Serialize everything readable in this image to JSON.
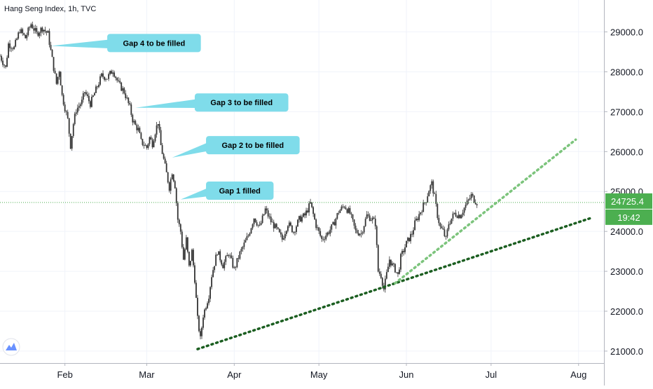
{
  "chart_data": {
    "type": "candlestick",
    "title": "Hang Seng Index, 1h, TVC",
    "colors": {
      "up": "#26a69a",
      "down": "#ef5350",
      "candle": "#333333",
      "callout": "#7fdcea",
      "trend_dark": "#1b5e20",
      "trend_light": "#7cc47c",
      "price_line": "#4caf50",
      "price_badge": "#4caf50",
      "grid": "#f0f3fa"
    },
    "y_axis": {
      "ticks": [
        "21000.0",
        "22000.0",
        "23000.0",
        "24000.0",
        "25000.0",
        "26000.0",
        "27000.0",
        "28000.0",
        "29000.0"
      ],
      "range": [
        20700,
        29800
      ]
    },
    "x_axis": {
      "ticks": [
        "Feb",
        "Mar",
        "Apr",
        "May",
        "Jun",
        "Jul",
        "Aug"
      ],
      "tick_dates": [
        "2020-02-01",
        "2020-03-01",
        "2020-04-01",
        "2020-05-01",
        "2020-06-01",
        "2020-07-01",
        "2020-08-01"
      ],
      "range": [
        "2020-01-09",
        "2020-08-10"
      ]
    },
    "current_price": {
      "label": "24725.4",
      "value": 24725.4,
      "countdown": "19:42"
    },
    "price_path": [
      [
        "2020-01-09",
        28400
      ],
      [
        "2020-01-11",
        28100
      ],
      [
        "2020-01-12",
        28700
      ],
      [
        "2020-01-14",
        28600
      ],
      [
        "2020-01-16",
        29050
      ],
      [
        "2020-01-18",
        28850
      ],
      [
        "2020-01-20",
        29200
      ],
      [
        "2020-01-22",
        28950
      ],
      [
        "2020-01-24",
        29100
      ],
      [
        "2020-01-26",
        28950
      ],
      [
        "2020-01-28",
        28100
      ],
      [
        "2020-01-29",
        27700
      ],
      [
        "2020-01-30",
        28050
      ],
      [
        "2020-01-31",
        27400
      ],
      [
        "2020-02-02",
        26800
      ],
      [
        "2020-02-03",
        26150
      ],
      [
        "2020-02-04",
        26700
      ],
      [
        "2020-02-05",
        27050
      ],
      [
        "2020-02-07",
        27250
      ],
      [
        "2020-02-08",
        27500
      ],
      [
        "2020-02-10",
        27200
      ],
      [
        "2020-02-12",
        27550
      ],
      [
        "2020-02-14",
        27900
      ],
      [
        "2020-02-16",
        27850
      ],
      [
        "2020-02-18",
        28050
      ],
      [
        "2020-02-20",
        27700
      ],
      [
        "2020-02-22",
        27500
      ],
      [
        "2020-02-24",
        27100
      ],
      [
        "2020-02-25",
        26800
      ],
      [
        "2020-02-26",
        26650
      ],
      [
        "2020-02-27",
        26550
      ],
      [
        "2020-02-28",
        26250
      ],
      [
        "2020-03-01",
        26100
      ],
      [
        "2020-03-02",
        26350
      ],
      [
        "2020-03-03",
        26200
      ],
      [
        "2020-03-04",
        26500
      ],
      [
        "2020-03-05",
        26750
      ],
      [
        "2020-03-06",
        26150
      ],
      [
        "2020-03-09",
        25100
      ],
      [
        "2020-03-10",
        25500
      ],
      [
        "2020-03-11",
        25150
      ],
      [
        "2020-03-12",
        24300
      ],
      [
        "2020-03-13",
        24000
      ],
      [
        "2020-03-14",
        23300
      ],
      [
        "2020-03-15",
        23800
      ],
      [
        "2020-03-16",
        23100
      ],
      [
        "2020-03-17",
        23500
      ],
      [
        "2020-03-18",
        22800
      ],
      [
        "2020-03-19",
        21800
      ],
      [
        "2020-03-20",
        21300
      ],
      [
        "2020-03-21",
        21900
      ],
      [
        "2020-03-23",
        22400
      ],
      [
        "2020-03-24",
        22900
      ],
      [
        "2020-03-26",
        23500
      ],
      [
        "2020-03-28",
        23150
      ],
      [
        "2020-03-30",
        23450
      ],
      [
        "2020-04-01",
        23050
      ],
      [
        "2020-04-03",
        23450
      ],
      [
        "2020-04-06",
        23900
      ],
      [
        "2020-04-08",
        24350
      ],
      [
        "2020-04-10",
        24100
      ],
      [
        "2020-04-12",
        24550
      ],
      [
        "2020-04-14",
        24250
      ],
      [
        "2020-04-16",
        24050
      ],
      [
        "2020-04-18",
        23800
      ],
      [
        "2020-04-20",
        24200
      ],
      [
        "2020-04-22",
        24000
      ],
      [
        "2020-04-24",
        24300
      ],
      [
        "2020-04-26",
        24400
      ],
      [
        "2020-04-28",
        24700
      ],
      [
        "2020-04-30",
        24150
      ],
      [
        "2020-05-02",
        23800
      ],
      [
        "2020-05-04",
        23950
      ],
      [
        "2020-05-06",
        24150
      ],
      [
        "2020-05-08",
        24500
      ],
      [
        "2020-05-10",
        24650
      ],
      [
        "2020-05-12",
        24450
      ],
      [
        "2020-05-14",
        24000
      ],
      [
        "2020-05-16",
        23950
      ],
      [
        "2020-05-18",
        24400
      ],
      [
        "2020-05-20",
        24300
      ],
      [
        "2020-05-21",
        24200
      ],
      [
        "2020-05-22",
        23000
      ],
      [
        "2020-05-23",
        22900
      ],
      [
        "2020-05-24",
        22550
      ],
      [
        "2020-05-26",
        23300
      ],
      [
        "2020-05-27",
        23150
      ],
      [
        "2020-05-28",
        23050
      ],
      [
        "2020-05-29",
        22900
      ],
      [
        "2020-05-30",
        23350
      ],
      [
        "2020-06-01",
        23700
      ],
      [
        "2020-06-03",
        23950
      ],
      [
        "2020-06-04",
        24200
      ],
      [
        "2020-06-06",
        24500
      ],
      [
        "2020-06-08",
        24800
      ],
      [
        "2020-06-09",
        25050
      ],
      [
        "2020-06-10",
        25200
      ],
      [
        "2020-06-11",
        24850
      ],
      [
        "2020-06-12",
        24400
      ],
      [
        "2020-06-13",
        24100
      ],
      [
        "2020-06-14",
        24000
      ],
      [
        "2020-06-15",
        23800
      ],
      [
        "2020-06-16",
        24200
      ],
      [
        "2020-06-18",
        24450
      ],
      [
        "2020-06-20",
        24400
      ],
      [
        "2020-06-22",
        24650
      ],
      [
        "2020-06-24",
        24900
      ],
      [
        "2020-06-25",
        24800
      ],
      [
        "2020-06-26",
        24725
      ]
    ],
    "callouts": [
      {
        "text": "Gap 4 to be filled",
        "box_date": "2020-02-16",
        "box_price": 28950,
        "pointer_date": "2020-01-27",
        "pointer_price": 28650
      },
      {
        "text": "Gap 3 to be filled",
        "box_date": "2020-03-18",
        "box_price": 27460,
        "pointer_date": "2020-02-26",
        "pointer_price": 27100
      },
      {
        "text": "Gap 2 to be filled",
        "box_date": "2020-03-22",
        "box_price": 26390,
        "pointer_date": "2020-03-10",
        "pointer_price": 25850
      },
      {
        "text": "Gap 1 filled",
        "box_date": "2020-03-22",
        "box_price": 25250,
        "pointer_date": "2020-03-13",
        "pointer_price": 24800
      }
    ],
    "trend_lines": [
      {
        "style": "dotted",
        "color_key": "trend_dark",
        "from": [
          "2020-03-19",
          21050
        ],
        "to": [
          "2020-08-06",
          24350
        ]
      },
      {
        "style": "dotted",
        "color_key": "trend_light",
        "from": [
          "2020-05-28",
          22700
        ],
        "to": [
          "2020-07-31",
          26300
        ]
      }
    ]
  }
}
